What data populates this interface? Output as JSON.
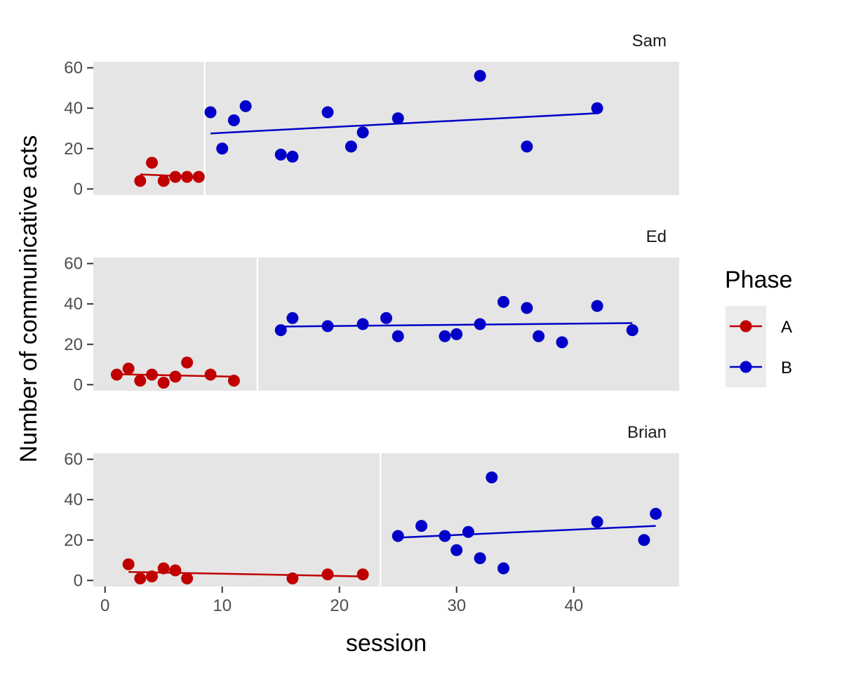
{
  "chart_data": {
    "type": "scatter",
    "title": "",
    "xlabel": "session",
    "ylabel": "Number of communicative acts",
    "xlim": [
      -1,
      49
    ],
    "ylim": [
      -3,
      63
    ],
    "x_ticks": [
      0,
      10,
      20,
      30,
      40
    ],
    "y_ticks": [
      0,
      20,
      40,
      60
    ],
    "grid": false,
    "legend": {
      "title": "Phase",
      "position": "right",
      "entries": [
        {
          "label": "A",
          "color": "#c00000"
        },
        {
          "label": "B",
          "color": "#0000c8"
        }
      ]
    },
    "panels": [
      {
        "label": "Sam",
        "phase_change": 8.5,
        "series": [
          {
            "phase": "A",
            "x": [
              3,
              4,
              5,
              6,
              7,
              8
            ],
            "y": [
              4,
              13,
              4,
              6,
              6,
              6
            ],
            "fit": [
              [
                3,
                7.2
              ],
              [
                8,
                6.0
              ]
            ]
          },
          {
            "phase": "B",
            "x": [
              9,
              10,
              11,
              12,
              15,
              16,
              19,
              21,
              22,
              25,
              32,
              36,
              42
            ],
            "y": [
              38,
              20,
              34,
              41,
              17,
              16,
              38,
              21,
              28,
              35,
              56,
              21,
              40
            ],
            "fit": [
              [
                9,
                27.5
              ],
              [
                42,
                37.5
              ]
            ]
          }
        ]
      },
      {
        "label": "Ed",
        "phase_change": 13,
        "series": [
          {
            "phase": "A",
            "x": [
              1,
              2,
              3,
              4,
              5,
              6,
              7,
              9,
              11
            ],
            "y": [
              5,
              8,
              2,
              5,
              1,
              4,
              11,
              5,
              2
            ],
            "fit": [
              [
                1,
                5.2
              ],
              [
                11,
                4.0
              ]
            ]
          },
          {
            "phase": "B",
            "x": [
              15,
              16,
              19,
              22,
              24,
              25,
              29,
              30,
              32,
              34,
              36,
              37,
              39,
              42,
              45
            ],
            "y": [
              27,
              33,
              29,
              30,
              33,
              24,
              24,
              25,
              30,
              41,
              38,
              24,
              21,
              39,
              27
            ],
            "fit": [
              [
                15,
                28.8
              ],
              [
                45,
                30.5
              ]
            ]
          }
        ]
      },
      {
        "label": "Brian",
        "phase_change": 23.5,
        "series": [
          {
            "phase": "A",
            "x": [
              2,
              3,
              4,
              5,
              6,
              7,
              16,
              19,
              22
            ],
            "y": [
              8,
              1,
              2,
              6,
              5,
              1,
              1,
              3,
              3
            ],
            "fit": [
              [
                2,
                4.2
              ],
              [
                22,
                2.0
              ]
            ]
          },
          {
            "phase": "B",
            "x": [
              25,
              27,
              29,
              30,
              31,
              32,
              33,
              34,
              42,
              46,
              47
            ],
            "y": [
              22,
              27,
              22,
              15,
              24,
              11,
              51,
              6,
              29,
              20,
              33
            ],
            "fit": [
              [
                25,
                21.2
              ],
              [
                47,
                27.0
              ]
            ]
          }
        ]
      }
    ]
  }
}
